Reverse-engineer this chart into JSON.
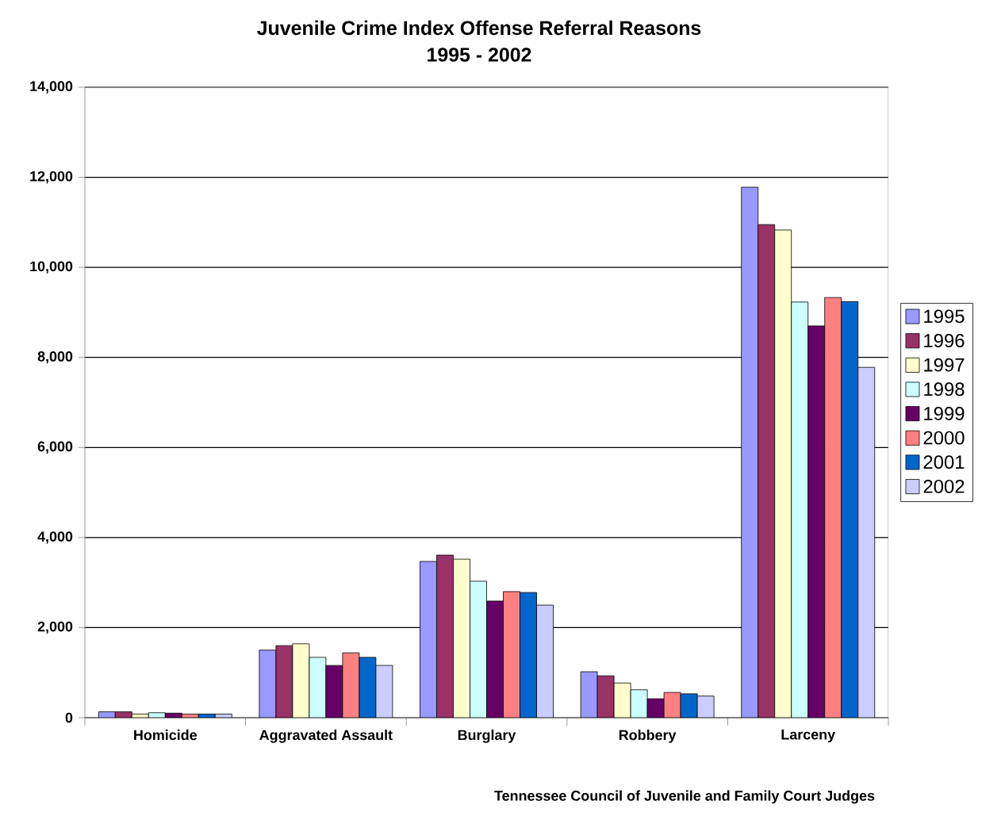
{
  "chart_data": {
    "type": "bar",
    "title": "Juvenile Crime Index Offense Referral Reasons",
    "subtitle": "1995 - 2002",
    "categories": [
      "Homicide",
      "Aggravated Assault",
      "Burglary",
      "Robbery",
      "Larceny"
    ],
    "series": [
      {
        "name": "1995",
        "color": "#9999ff",
        "values": [
          130,
          1500,
          3470,
          1020,
          11780
        ]
      },
      {
        "name": "1996",
        "color": "#993366",
        "values": [
          130,
          1600,
          3610,
          930,
          10950
        ]
      },
      {
        "name": "1997",
        "color": "#ffffcc",
        "values": [
          80,
          1640,
          3520,
          770,
          10830
        ]
      },
      {
        "name": "1998",
        "color": "#ccffff",
        "values": [
          110,
          1340,
          3030,
          620,
          9230
        ]
      },
      {
        "name": "1999",
        "color": "#660066",
        "values": [
          100,
          1160,
          2590,
          420,
          8700
        ]
      },
      {
        "name": "2000",
        "color": "#ff8080",
        "values": [
          80,
          1440,
          2800,
          560,
          9330
        ]
      },
      {
        "name": "2001",
        "color": "#0066cc",
        "values": [
          80,
          1340,
          2780,
          530,
          9240
        ]
      },
      {
        "name": "2002",
        "color": "#ccccff",
        "values": [
          80,
          1160,
          2500,
          480,
          7780
        ]
      }
    ],
    "ylim": [
      0,
      14000
    ],
    "yticks": [
      {
        "value": 0,
        "label": "0"
      },
      {
        "value": 2000,
        "label": "2,000"
      },
      {
        "value": 4000,
        "label": "4,000"
      },
      {
        "value": 6000,
        "label": "6,000"
      },
      {
        "value": 8000,
        "label": "8,000"
      },
      {
        "value": 10000,
        "label": "10,000"
      },
      {
        "value": 12000,
        "label": "12,000"
      },
      {
        "value": 14000,
        "label": "14,000"
      }
    ],
    "grid": "y",
    "legend": "right",
    "annotations": [
      "Tennessee Council of Juvenile and Family Court Judges"
    ]
  }
}
